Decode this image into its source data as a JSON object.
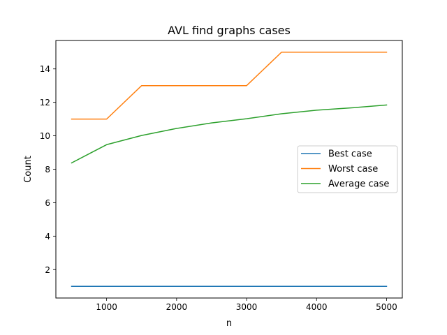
{
  "chart_data": {
    "type": "line",
    "title": "AVL find graphs cases",
    "xlabel": "n",
    "ylabel": "Count",
    "x": [
      500,
      1000,
      1500,
      2000,
      2500,
      3000,
      3500,
      4000,
      4500,
      5000
    ],
    "series": [
      {
        "name": "Best case",
        "color": "#1f77b4",
        "values": [
          1,
          1,
          1,
          1,
          1,
          1,
          1,
          1,
          1,
          1
        ]
      },
      {
        "name": "Worst case",
        "color": "#ff7f0e",
        "values": [
          11,
          11,
          13,
          13,
          13,
          13,
          15,
          15,
          15,
          15
        ]
      },
      {
        "name": "Average case",
        "color": "#2ca02c",
        "values": [
          8.38,
          9.47,
          10.02,
          10.44,
          10.77,
          11.02,
          11.32,
          11.53,
          11.67,
          11.84
        ]
      }
    ],
    "xlim": [
      275,
      5225
    ],
    "ylim": [
      0.3,
      15.7
    ],
    "xticks": [
      1000,
      2000,
      3000,
      4000,
      5000
    ],
    "yticks": [
      2,
      4,
      6,
      8,
      10,
      12,
      14
    ],
    "grid": false,
    "legend_position": "center-right"
  }
}
